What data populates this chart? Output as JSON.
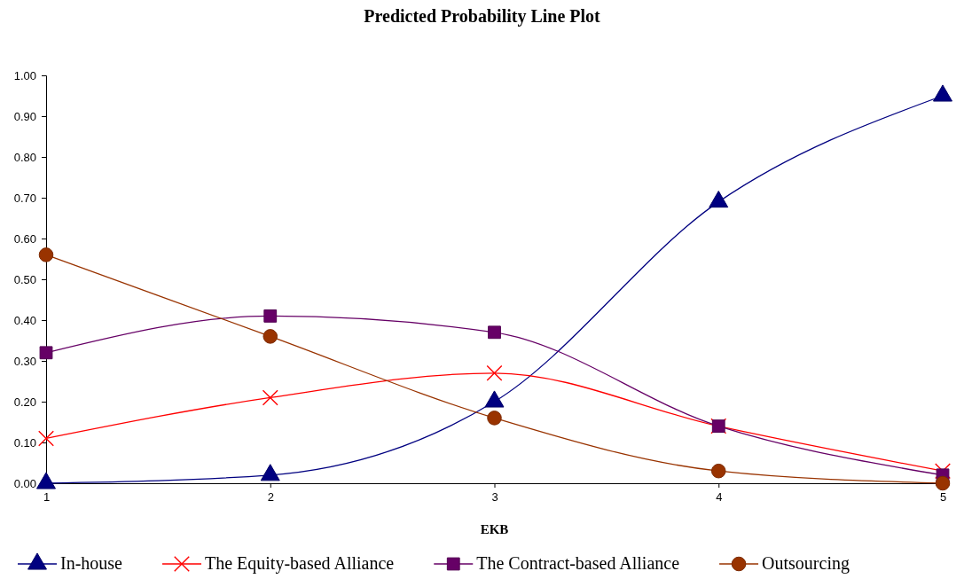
{
  "chart_data": {
    "type": "line",
    "title": "Predicted Probability Line Plot",
    "xlabel": "EKB",
    "x": [
      1,
      2,
      3,
      4,
      5
    ],
    "xlim": [
      1,
      5
    ],
    "xticks": [
      1,
      2,
      3,
      4,
      5
    ],
    "ylim": [
      0,
      1
    ],
    "yticks": [
      {
        "value": 0,
        "label": "0.00"
      },
      {
        "value": 0.1,
        "label": "0.10"
      },
      {
        "value": 0.2,
        "label": "0.20"
      },
      {
        "value": 0.3,
        "label": "0.30"
      },
      {
        "value": 0.4,
        "label": "0.40"
      },
      {
        "value": 0.5,
        "label": "0.50"
      },
      {
        "value": 0.6,
        "label": "0.60"
      },
      {
        "value": 0.7,
        "label": "0.70"
      },
      {
        "value": 0.8,
        "label": "0.80"
      },
      {
        "value": 0.9,
        "label": "0.90"
      },
      {
        "value": 1,
        "label": "1.00"
      }
    ],
    "grid": false,
    "legend": "bottom",
    "line_style": "solid",
    "series": [
      {
        "name": "In-house",
        "color": "#000080",
        "marker": "triangle",
        "values": [
          0.0,
          0.02,
          0.2,
          0.69,
          0.95
        ]
      },
      {
        "name": "The Equity-based Alliance",
        "color": "#ff0000",
        "marker": "cross",
        "values": [
          0.11,
          0.21,
          0.27,
          0.14,
          0.03
        ]
      },
      {
        "name": "The Contract-based Alliance",
        "color": "#660066",
        "marker": "square",
        "values": [
          0.32,
          0.41,
          0.37,
          0.14,
          0.02
        ]
      },
      {
        "name": "Outsourcing",
        "color": "#993300",
        "marker": "circle",
        "values": [
          0.56,
          0.36,
          0.16,
          0.03,
          0.0
        ]
      }
    ]
  }
}
